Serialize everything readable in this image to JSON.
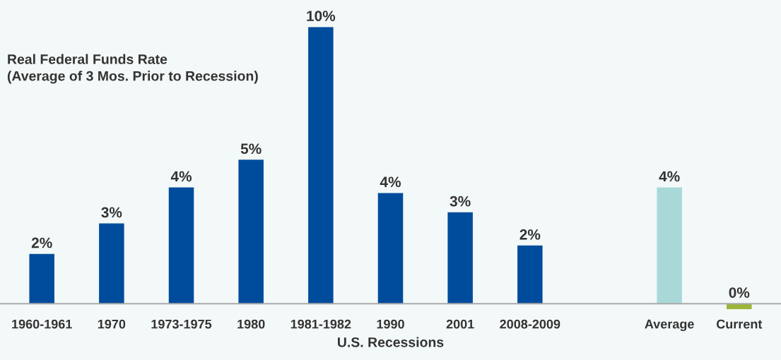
{
  "chart_data": {
    "type": "bar",
    "title": "Real Federal Funds Rate\n(Average of 3 Mos. Prior to Recession)",
    "xlabel": "U.S. Recessions",
    "categories": [
      "1960-1961",
      "1970",
      "1973-1975",
      "1980",
      "1981-1982",
      "1990",
      "2001",
      "2008-2009",
      null,
      "Average",
      "Current"
    ],
    "values": [
      1.8,
      2.9,
      4.2,
      5.2,
      10.0,
      4.0,
      3.3,
      2.1,
      null,
      4.2,
      -0.2
    ],
    "value_labels": [
      "2%",
      "3%",
      "4%",
      "5%",
      "10%",
      "4%",
      "3%",
      "2%",
      null,
      "4%",
      "0%"
    ],
    "colors": [
      "#004c9c",
      "#004c9c",
      "#004c9c",
      "#004c9c",
      "#004c9c",
      "#004c9c",
      "#004c9c",
      "#004c9c",
      "#004c9c",
      "#a8d9d8",
      "#9cb53a"
    ],
    "grid": false,
    "legend": false
  }
}
